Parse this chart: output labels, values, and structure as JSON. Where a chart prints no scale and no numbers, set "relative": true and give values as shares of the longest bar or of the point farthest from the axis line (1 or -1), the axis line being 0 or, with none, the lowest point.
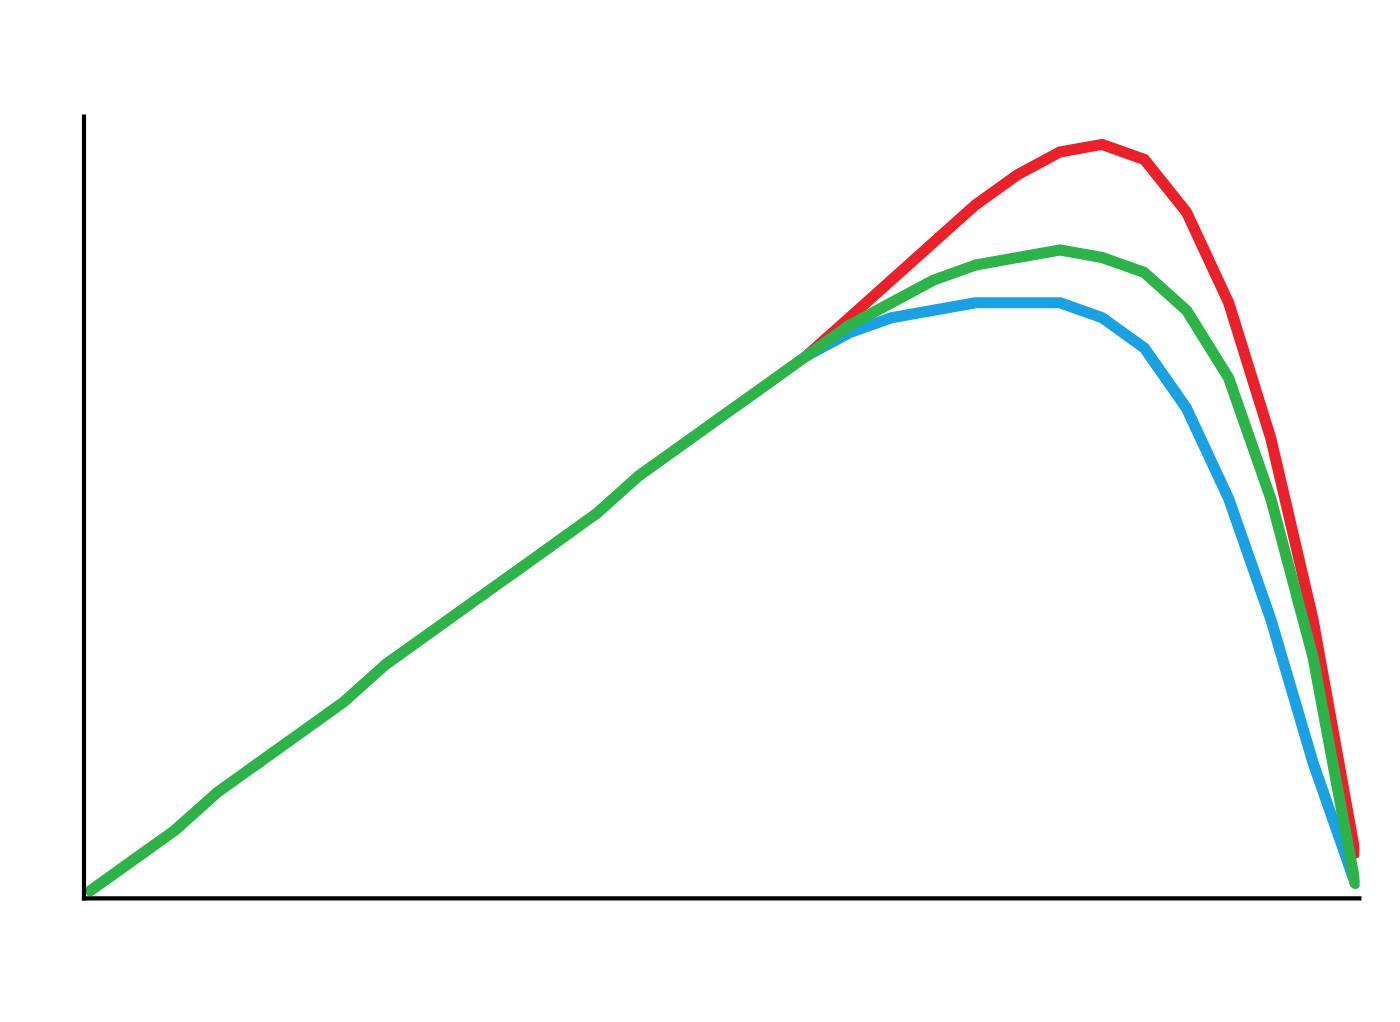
{
  "chart_data": {
    "type": "line",
    "relative": true,
    "grid": false,
    "marker": "none",
    "line_style": "solid",
    "categories": [
      null,
      null,
      null,
      null,
      null,
      null,
      null,
      null,
      null,
      null,
      null,
      null,
      null,
      null,
      null,
      null,
      null,
      null,
      null,
      null,
      null,
      null,
      null,
      null,
      null,
      null,
      null,
      null,
      null,
      null,
      null
    ],
    "series": [
      {
        "color": "#2db34a",
        "values": [
          0.01,
          0.05,
          0.09,
          0.14,
          0.18,
          0.22,
          0.26,
          0.31,
          0.35,
          0.39,
          0.43,
          0.47,
          0.51,
          0.56,
          0.6,
          0.64,
          0.68,
          0.72,
          0.76,
          0.79,
          0.82,
          0.84,
          0.85,
          0.86,
          0.85,
          0.83,
          0.78,
          0.69,
          0.53,
          0.32,
          0.02
        ]
      },
      {
        "color": "#e8212b",
        "values": [
          null,
          null,
          null,
          null,
          null,
          null,
          null,
          null,
          null,
          null,
          null,
          null,
          null,
          null,
          null,
          null,
          null,
          0.72,
          0.77,
          0.82,
          0.87,
          0.92,
          0.96,
          0.99,
          1.0,
          0.98,
          0.91,
          0.79,
          0.61,
          0.37,
          0.06
        ]
      },
      {
        "color": "#1ba1e2",
        "values": [
          null,
          null,
          null,
          null,
          null,
          null,
          null,
          null,
          null,
          null,
          null,
          null,
          null,
          null,
          null,
          null,
          null,
          0.72,
          0.75,
          0.77,
          0.78,
          0.79,
          0.79,
          0.79,
          0.77,
          0.73,
          0.65,
          0.53,
          0.37,
          0.18,
          0.02
        ]
      }
    ]
  }
}
